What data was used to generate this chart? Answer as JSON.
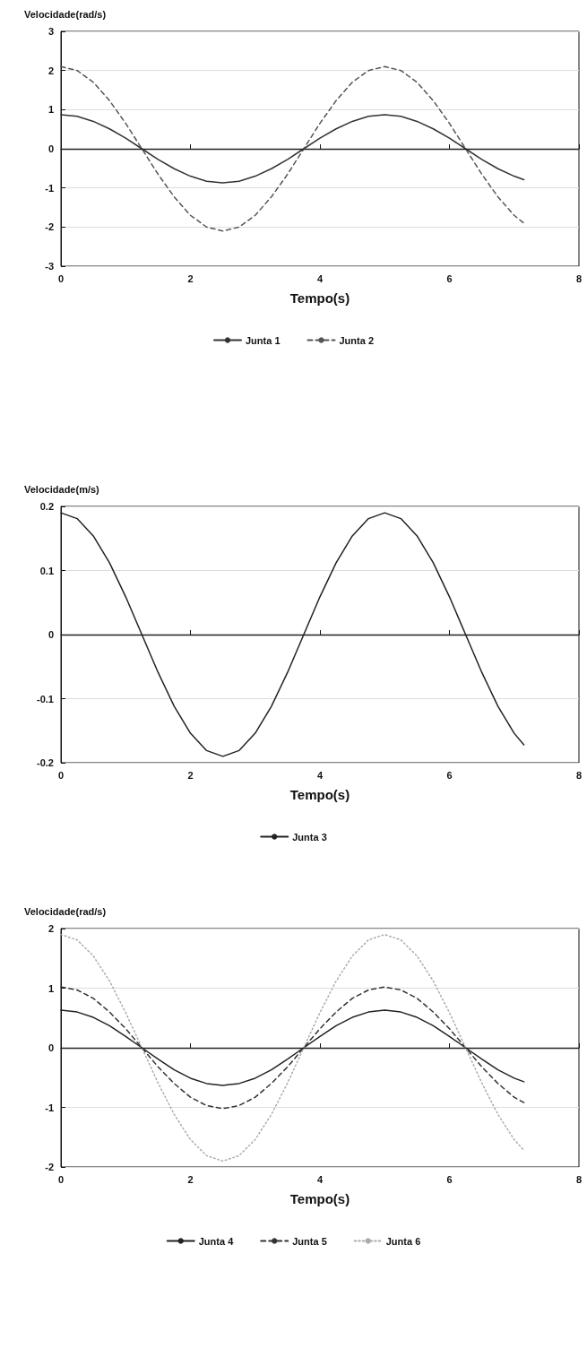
{
  "chart_data": [
    {
      "type": "line",
      "ylabel": "Velocidade(rad/s)",
      "xlabel": "Tempo(s)",
      "xlim": [
        0,
        8
      ],
      "xticks": [
        0,
        2,
        4,
        6,
        8
      ],
      "ylim": [
        -3,
        3
      ],
      "yticks": [
        -3,
        -2,
        -1,
        0,
        1,
        2,
        3
      ],
      "grid": "y",
      "legend": "bottom",
      "marker": "none",
      "x": [
        0,
        0.25,
        0.5,
        0.75,
        1,
        1.25,
        1.5,
        1.75,
        2,
        2.25,
        2.5,
        2.75,
        3,
        3.25,
        3.5,
        3.75,
        4,
        4.25,
        4.5,
        4.75,
        5,
        5.25,
        5.5,
        5.75,
        6,
        6.25,
        6.5,
        6.75,
        7,
        7.15
      ],
      "ref_lines": [
        {
          "axis": "y",
          "value": 0,
          "color": "#222222"
        }
      ],
      "series": [
        {
          "name": "Junta 1",
          "color": "#333333",
          "line_style": "solid",
          "values": [
            0.87,
            0.83,
            0.7,
            0.51,
            0.27,
            0,
            -0.27,
            -0.51,
            -0.7,
            -0.83,
            -0.87,
            -0.83,
            -0.7,
            -0.51,
            -0.27,
            0,
            0.27,
            0.51,
            0.7,
            0.83,
            0.87,
            0.83,
            0.7,
            0.51,
            0.27,
            0,
            -0.27,
            -0.51,
            -0.7,
            -0.79
          ]
        },
        {
          "name": "Junta 2",
          "color": "#555555",
          "line_style": "dashed",
          "values": [
            2.1,
            2.0,
            1.7,
            1.23,
            0.65,
            0,
            -0.65,
            -1.23,
            -1.7,
            -2.0,
            -2.1,
            -2.0,
            -1.7,
            -1.23,
            -0.65,
            0,
            0.65,
            1.23,
            1.7,
            2.0,
            2.1,
            2.0,
            1.7,
            1.23,
            0.65,
            0,
            -0.65,
            -1.23,
            -1.7,
            -1.9
          ]
        }
      ]
    },
    {
      "type": "line",
      "ylabel": "Velocidade(m/s)",
      "xlabel": "Tempo(s)",
      "xlim": [
        0,
        8
      ],
      "xticks": [
        0,
        2,
        4,
        6,
        8
      ],
      "ylim": [
        -0.2,
        0.2
      ],
      "yticks": [
        -0.2,
        -0.1,
        0,
        0.1,
        0.2
      ],
      "grid": "y",
      "legend": "bottom",
      "marker": "none",
      "x": [
        0,
        0.25,
        0.5,
        0.75,
        1,
        1.25,
        1.5,
        1.75,
        2,
        2.25,
        2.5,
        2.75,
        3,
        3.25,
        3.5,
        3.75,
        4,
        4.25,
        4.5,
        4.75,
        5,
        5.25,
        5.5,
        5.75,
        6,
        6.25,
        6.5,
        6.75,
        7,
        7.15
      ],
      "ref_lines": [
        {
          "axis": "y",
          "value": 0,
          "color": "#222222"
        }
      ],
      "series": [
        {
          "name": "Junta 3",
          "color": "#222222",
          "line_style": "solid",
          "values": [
            0.19,
            0.181,
            0.154,
            0.112,
            0.059,
            0,
            -0.059,
            -0.112,
            -0.154,
            -0.181,
            -0.19,
            -0.181,
            -0.154,
            -0.112,
            -0.059,
            0,
            0.059,
            0.112,
            0.154,
            0.181,
            0.19,
            0.181,
            0.154,
            0.112,
            0.059,
            0,
            -0.059,
            -0.112,
            -0.154,
            -0.172
          ]
        }
      ]
    },
    {
      "type": "line",
      "ylabel": "Velocidade(rad/s)",
      "xlabel": "Tempo(s)",
      "xlim": [
        0,
        8
      ],
      "xticks": [
        0,
        2,
        4,
        6,
        8
      ],
      "ylim": [
        -2,
        2
      ],
      "yticks": [
        -2,
        -1,
        0,
        1,
        2
      ],
      "grid": "y",
      "legend": "bottom",
      "marker": "none",
      "x": [
        0,
        0.25,
        0.5,
        0.75,
        1,
        1.25,
        1.5,
        1.75,
        2,
        2.25,
        2.5,
        2.75,
        3,
        3.25,
        3.5,
        3.75,
        4,
        4.25,
        4.5,
        4.75,
        5,
        5.25,
        5.5,
        5.75,
        6,
        6.25,
        6.5,
        6.75,
        7,
        7.15
      ],
      "ref_lines": [
        {
          "axis": "y",
          "value": 0,
          "color": "#222222"
        }
      ],
      "series": [
        {
          "name": "Junta 4",
          "color": "#222222",
          "line_style": "solid",
          "values": [
            0.63,
            0.6,
            0.51,
            0.37,
            0.19,
            0,
            -0.19,
            -0.37,
            -0.51,
            -0.6,
            -0.63,
            -0.6,
            -0.51,
            -0.37,
            -0.19,
            0,
            0.19,
            0.37,
            0.51,
            0.6,
            0.63,
            0.6,
            0.51,
            0.37,
            0.19,
            0,
            -0.19,
            -0.37,
            -0.51,
            -0.57
          ]
        },
        {
          "name": "Junta 5",
          "color": "#333333",
          "line_style": "dashed",
          "values": [
            1.02,
            0.97,
            0.83,
            0.6,
            0.32,
            0,
            -0.32,
            -0.6,
            -0.83,
            -0.97,
            -1.02,
            -0.97,
            -0.83,
            -0.6,
            -0.32,
            0,
            0.32,
            0.6,
            0.83,
            0.97,
            1.02,
            0.97,
            0.83,
            0.6,
            0.32,
            0,
            -0.32,
            -0.6,
            -0.83,
            -0.92
          ]
        },
        {
          "name": "Junta 6",
          "color": "#aaaaaa",
          "line_style": "dotted",
          "values": [
            1.9,
            1.81,
            1.54,
            1.12,
            0.59,
            0,
            -0.59,
            -1.12,
            -1.54,
            -1.81,
            -1.9,
            -1.81,
            -1.54,
            -1.12,
            -0.59,
            0,
            0.59,
            1.12,
            1.54,
            1.81,
            1.9,
            1.81,
            1.54,
            1.12,
            0.59,
            0,
            -0.59,
            -1.12,
            -1.54,
            -1.72
          ]
        }
      ]
    }
  ]
}
